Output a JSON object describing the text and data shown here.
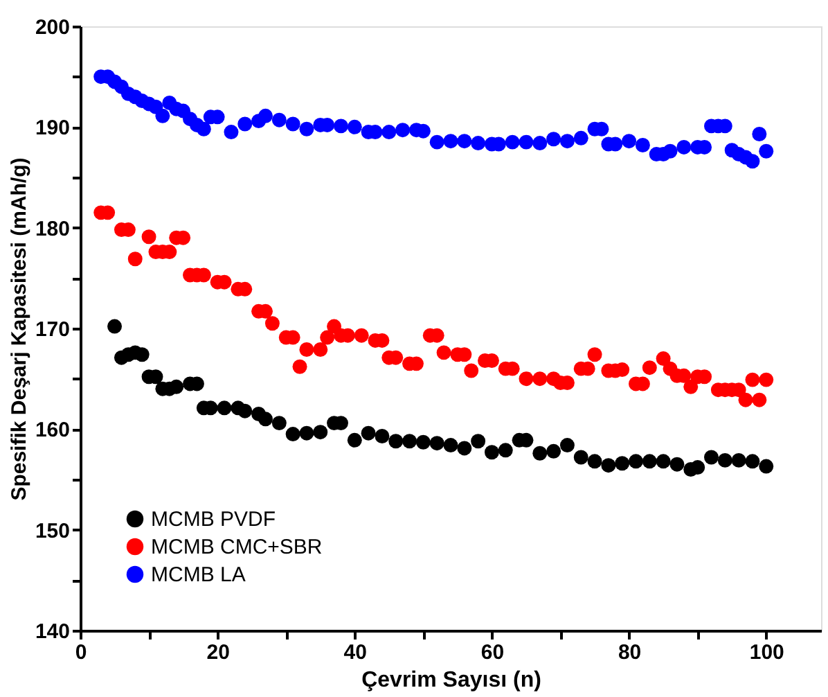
{
  "chart_data": {
    "type": "scatter",
    "xlabel": "Çevrim Sayısı (n)",
    "ylabel": "Spesifik Deşarj Kapasitesi (mAh/g)",
    "xlim": [
      0,
      108
    ],
    "xticks": [
      0,
      {
        "value": 10,
        "label": null
      },
      20,
      {
        "value": 30,
        "label": null
      },
      40,
      {
        "value": 50,
        "label": null
      },
      60,
      {
        "value": 70,
        "label": null
      },
      80,
      {
        "value": 90,
        "label": null
      },
      100
    ],
    "ylim": [
      140,
      200
    ],
    "yticks": [
      140,
      {
        "value": 145,
        "label": null
      },
      150,
      {
        "value": 155,
        "label": null
      },
      160,
      {
        "value": 165,
        "label": null
      },
      170,
      {
        "value": 175,
        "label": null
      },
      180,
      {
        "value": 185,
        "label": null
      },
      190,
      {
        "value": 195,
        "label": null
      },
      200
    ],
    "grid": false,
    "legend": "bottom left",
    "marker": "circle",
    "series": [
      {
        "name": "MCMB PVDF",
        "color": "#000000",
        "x": [
          5,
          6,
          7,
          8,
          9,
          10,
          11,
          12,
          13,
          14,
          16,
          17,
          18,
          19,
          21,
          23,
          24,
          26,
          27,
          29,
          31,
          33,
          35,
          37,
          38,
          40,
          42,
          44,
          46,
          48,
          50,
          52,
          54,
          56,
          58,
          60,
          62,
          64,
          65,
          67,
          69,
          71,
          73,
          75,
          77,
          79,
          81,
          83,
          85,
          87,
          89,
          90,
          92,
          94,
          96,
          98,
          100
        ],
        "values": [
          170.2,
          167.1,
          167.4,
          167.6,
          167.4,
          165.2,
          165.2,
          164.0,
          164.0,
          164.2,
          164.5,
          164.5,
          162.1,
          162.1,
          162.1,
          162.1,
          161.8,
          161.5,
          161.0,
          160.6,
          159.5,
          159.6,
          159.7,
          160.6,
          160.6,
          158.9,
          159.6,
          159.3,
          158.8,
          158.8,
          158.7,
          158.6,
          158.4,
          158.1,
          158.8,
          157.7,
          157.9,
          158.9,
          158.9,
          157.6,
          157.8,
          158.4,
          157.2,
          156.8,
          156.4,
          156.6,
          156.8,
          156.8,
          156.8,
          156.5,
          156.0,
          156.2,
          157.2,
          156.9,
          156.9,
          156.8,
          156.3
        ]
      },
      {
        "name": "MCMB CMC+SBR",
        "color": "#ff0000",
        "x": [
          3,
          4,
          6,
          7,
          8,
          10,
          11,
          12,
          13,
          14,
          15,
          16,
          17,
          18,
          20,
          21,
          23,
          24,
          26,
          27,
          28,
          30,
          31,
          32,
          33,
          35,
          36,
          37,
          38,
          39,
          41,
          43,
          44,
          45,
          46,
          48,
          49,
          51,
          52,
          53,
          55,
          56,
          57,
          59,
          60,
          62,
          63,
          65,
          67,
          69,
          70,
          71,
          73,
          74,
          75,
          77,
          78,
          79,
          81,
          82,
          83,
          85,
          86,
          87,
          88,
          89,
          90,
          91,
          93,
          94,
          95,
          96,
          97,
          98,
          99,
          100
        ],
        "values": [
          181.5,
          181.5,
          179.8,
          179.8,
          176.9,
          179.1,
          177.6,
          177.6,
          177.6,
          179.0,
          179.0,
          175.3,
          175.3,
          175.3,
          174.6,
          174.6,
          173.9,
          173.9,
          171.7,
          171.7,
          170.5,
          169.1,
          169.1,
          166.2,
          167.9,
          167.9,
          169.1,
          170.2,
          169.3,
          169.3,
          169.3,
          168.8,
          168.8,
          167.1,
          167.1,
          166.5,
          166.5,
          169.3,
          169.3,
          167.6,
          167.4,
          167.4,
          165.8,
          166.8,
          166.8,
          166.0,
          166.0,
          165.0,
          165.0,
          165.0,
          164.6,
          164.6,
          166.0,
          166.0,
          167.4,
          165.8,
          165.8,
          165.9,
          164.5,
          164.5,
          166.1,
          167.0,
          166.0,
          165.3,
          165.3,
          164.2,
          165.2,
          165.2,
          163.9,
          163.9,
          163.9,
          163.9,
          162.9,
          164.9,
          162.9,
          164.9
        ]
      },
      {
        "name": "MCMB LA",
        "color": "#0000ff",
        "x": [
          3,
          4,
          5,
          6,
          7,
          8,
          9,
          10,
          11,
          12,
          13,
          14,
          15,
          16,
          17,
          18,
          19,
          20,
          22,
          24,
          26,
          27,
          29,
          31,
          33,
          35,
          36,
          38,
          40,
          42,
          43,
          45,
          47,
          49,
          50,
          52,
          54,
          56,
          58,
          60,
          61,
          63,
          65,
          67,
          69,
          71,
          73,
          75,
          76,
          77,
          78,
          80,
          82,
          84,
          85,
          86,
          88,
          90,
          91,
          92,
          93,
          94,
          95,
          96,
          97,
          98,
          99,
          100
        ],
        "values": [
          195.0,
          195.0,
          194.5,
          194.0,
          193.3,
          193.0,
          192.6,
          192.3,
          192.0,
          191.1,
          192.4,
          191.8,
          191.6,
          190.8,
          190.2,
          189.8,
          191.0,
          191.0,
          189.5,
          190.3,
          190.6,
          191.1,
          190.7,
          190.3,
          189.8,
          190.2,
          190.2,
          190.1,
          190.0,
          189.5,
          189.5,
          189.5,
          189.7,
          189.7,
          189.6,
          188.5,
          188.6,
          188.6,
          188.4,
          188.3,
          188.3,
          188.5,
          188.5,
          188.4,
          188.8,
          188.6,
          188.9,
          189.8,
          189.8,
          188.3,
          188.3,
          188.6,
          188.2,
          187.3,
          187.3,
          187.6,
          188.0,
          188.0,
          188.0,
          190.1,
          190.1,
          190.1,
          187.7,
          187.3,
          187.0,
          186.6,
          189.3,
          187.6
        ]
      }
    ]
  }
}
